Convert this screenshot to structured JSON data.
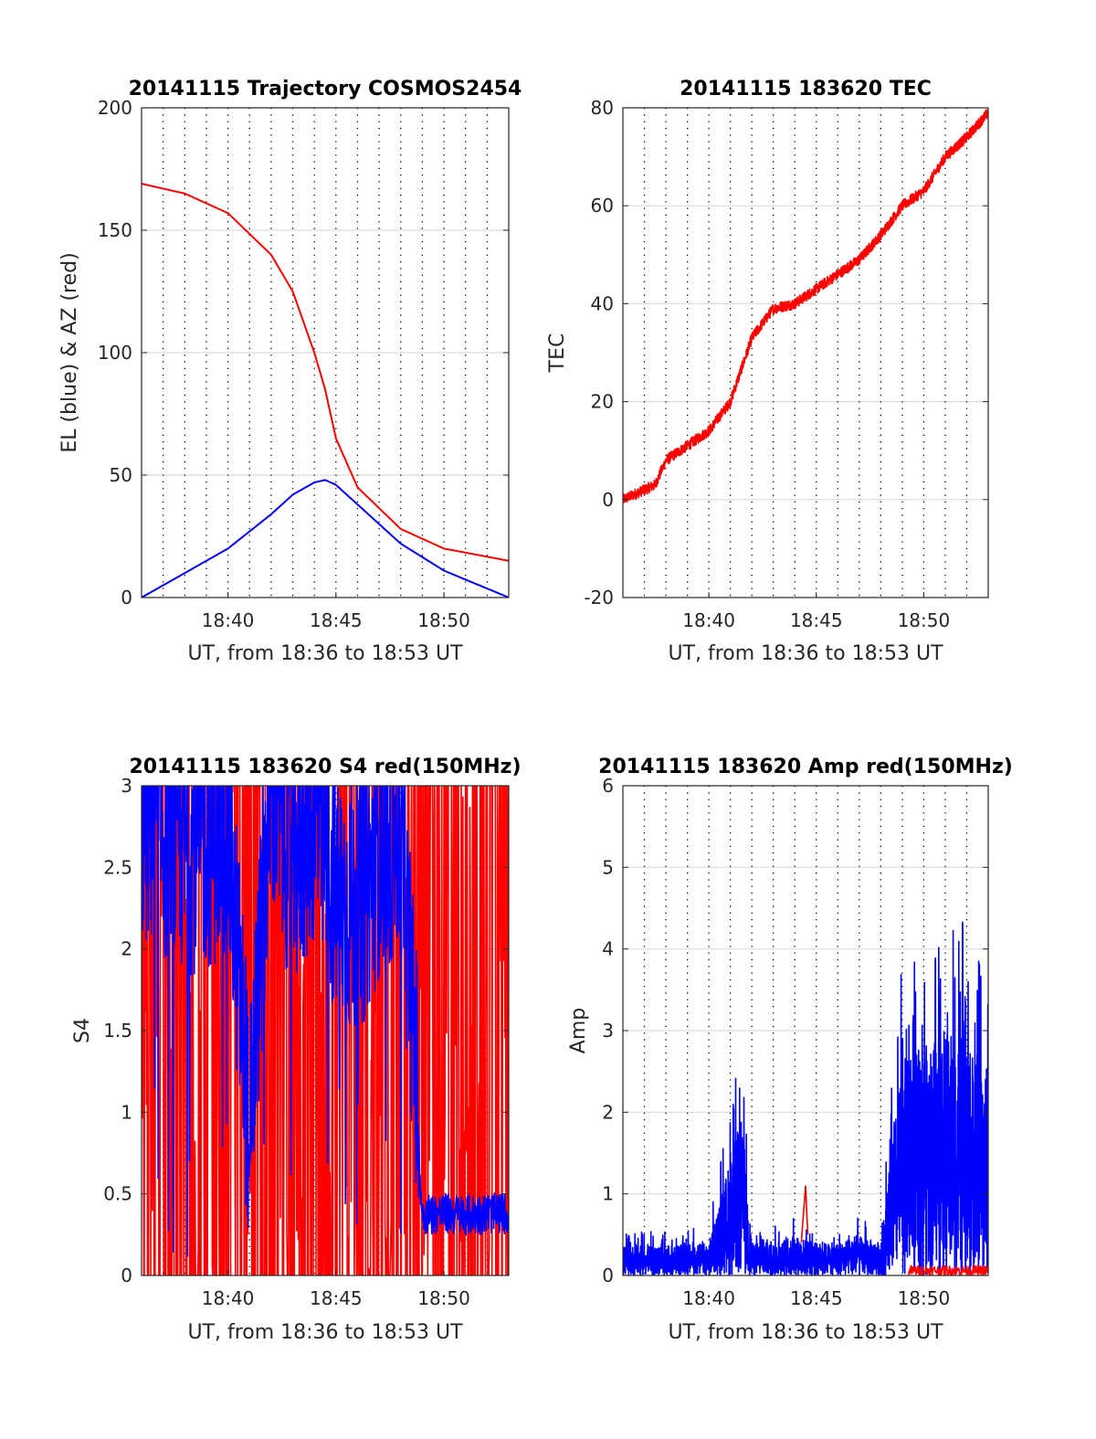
{
  "chart_data": [
    {
      "type": "line",
      "title": "20141115 Trajectory COSMOS2454",
      "xlabel": "UT, from 18:36 to 18:53 UT",
      "ylabel": "EL (blue) & AZ (red)",
      "xlim": [
        "18:36",
        "18:53"
      ],
      "ylim": [
        0,
        200
      ],
      "xticks": [
        "18:40",
        "18:45",
        "18:50"
      ],
      "yticks": [
        "0",
        "50",
        "100",
        "150",
        "200"
      ],
      "grid": true,
      "x": [
        "18:36",
        "18:38",
        "18:40",
        "18:42",
        "18:43",
        "18:44",
        "18:44.5",
        "18:45",
        "18:46",
        "18:48",
        "18:50",
        "18:53"
      ],
      "series": [
        {
          "color": "#ff0000",
          "values": [
            169,
            165,
            157,
            140,
            125,
            100,
            85,
            65,
            45,
            28,
            20,
            15
          ]
        },
        {
          "color": "#0000ff",
          "values": [
            0,
            10,
            20,
            34,
            42,
            47,
            48,
            46,
            38,
            22,
            11,
            0
          ]
        }
      ]
    },
    {
      "type": "line",
      "title": "20141115 183620 TEC",
      "xlabel": "UT, from 18:36 to 18:53 UT",
      "ylabel": "TEC",
      "xlim": [
        "18:36",
        "18:53"
      ],
      "ylim": [
        -20,
        80
      ],
      "xticks": [
        "18:40",
        "18:45",
        "18:50"
      ],
      "yticks": [
        "-20",
        "0",
        "20",
        "40",
        "60",
        "80"
      ],
      "grid": true,
      "x": [
        "18:36",
        "18:37",
        "18:37.5",
        "18:38",
        "18:39",
        "18:40",
        "18:41",
        "18:42",
        "18:43",
        "18:44",
        "18:45",
        "18:46",
        "18:47",
        "18:48",
        "18:49",
        "18:50",
        "18:51",
        "18:52",
        "18:53"
      ],
      "series": [
        {
          "color": "#ff0000",
          "values": [
            0,
            2,
            3,
            8,
            11,
            14,
            20,
            33,
            39,
            40,
            43,
            46,
            49,
            54,
            60,
            63,
            70,
            74,
            79
          ]
        }
      ]
    },
    {
      "type": "line",
      "title": "20141115 183620 S4 red(150MHz)",
      "xlabel": "UT, from 18:36 to 18:53 UT",
      "ylabel": "S4",
      "xlim": [
        "18:36",
        "18:53"
      ],
      "ylim": [
        0,
        3
      ],
      "xticks": [
        "18:40",
        "18:45",
        "18:50"
      ],
      "yticks": [
        "0",
        "0.5",
        "1",
        "1.5",
        "2",
        "2.5",
        "3"
      ],
      "grid": true,
      "series": [
        {
          "color": "#ff0000",
          "description_values": "rapid fluctuation between 0 and 3 across full interval"
        },
        {
          "color": "#0000ff",
          "x": [
            "18:36",
            "18:38",
            "18:40",
            "18:41",
            "18:42",
            "18:43",
            "18:44",
            "18:45",
            "18:46",
            "18:47",
            "18:48",
            "18:49",
            "18:50",
            "18:51",
            "18:52",
            "18:53"
          ],
          "values": [
            2.5,
            2.3,
            2.4,
            0.6,
            2.7,
            2.2,
            2.5,
            2.0,
            1.9,
            2.3,
            2.4,
            0.38,
            0.38,
            0.37,
            0.38,
            0.38
          ]
        }
      ]
    },
    {
      "type": "line",
      "title": "20141115 183620 Amp red(150MHz)",
      "xlabel": "UT, from 18:36 to 18:53 UT",
      "ylabel": "Amp",
      "xlim": [
        "18:36",
        "18:53"
      ],
      "ylim": [
        0,
        6
      ],
      "xticks": [
        "18:40",
        "18:45",
        "18:50"
      ],
      "yticks": [
        "0",
        "1",
        "2",
        "3",
        "4",
        "5",
        "6"
      ],
      "grid": true,
      "series": [
        {
          "color": "#0000ff",
          "x": [
            "18:36",
            "18:38",
            "18:40",
            "18:41",
            "18:41.5",
            "18:42",
            "18:43",
            "18:44",
            "18:45",
            "18:46",
            "18:47",
            "18:48",
            "18:49",
            "18:50",
            "18:51",
            "18:52",
            "18:53"
          ],
          "values": [
            0.45,
            0.45,
            0.5,
            1.8,
            2.4,
            0.5,
            0.5,
            0.6,
            0.5,
            0.5,
            0.6,
            0.5,
            3.3,
            3.5,
            3.8,
            3.6,
            3.2
          ]
        },
        {
          "color": "#ff0000",
          "x": [
            "18:44.5",
            "18:50",
            "18:53"
          ],
          "values": [
            1.1,
            0.1,
            0.15
          ]
        }
      ]
    }
  ]
}
